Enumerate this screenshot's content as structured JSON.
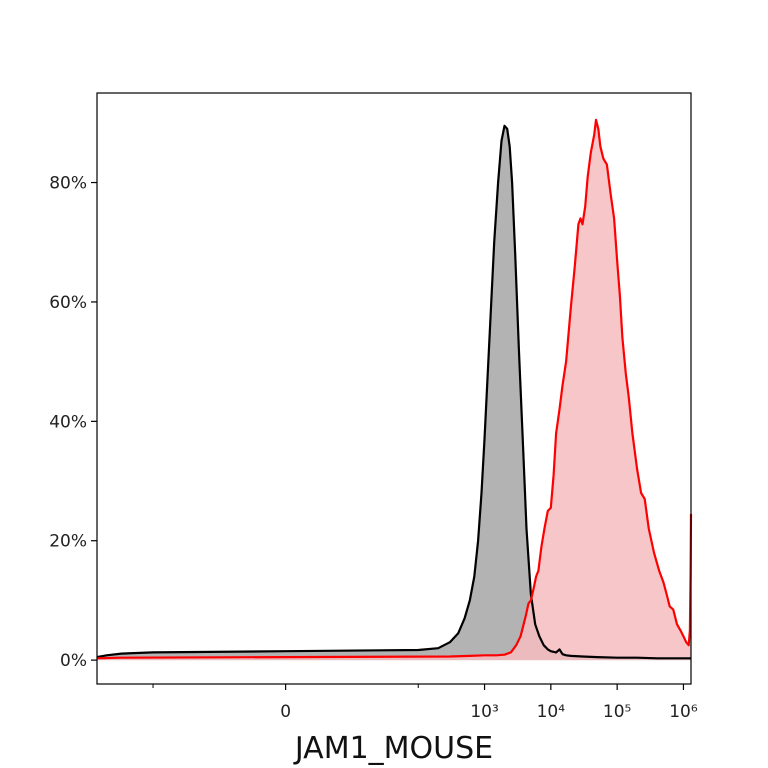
{
  "chart_data": {
    "type": "area",
    "title": "",
    "xlabel": "JAM1_MOUSE",
    "ylabel": "",
    "x_scale": "biexponential",
    "xlim": [
      -700,
      1300000
    ],
    "ylim": [
      -0.04,
      0.95
    ],
    "grid": false,
    "legend": "none",
    "x_ticks": [
      {
        "value": 0,
        "label": "0"
      },
      {
        "value": 1000,
        "label": "10³"
      },
      {
        "value": 10000,
        "label": "10⁴"
      },
      {
        "value": 100000,
        "label": "10⁵"
      },
      {
        "value": 1000000,
        "label": "10⁶"
      }
    ],
    "x_minor_ticks": [
      -100,
      100
    ],
    "y_ticks": [
      {
        "value": 0,
        "label": "0%"
      },
      {
        "value": 0.2,
        "label": "20%"
      },
      {
        "value": 0.4,
        "label": "40%"
      },
      {
        "value": 0.6,
        "label": "60%"
      },
      {
        "value": 0.8,
        "label": "80%"
      }
    ],
    "series": [
      {
        "line_color": "#000000",
        "fill_color": "#b3b3b3",
        "points": [
          [
            -700,
            0.005
          ],
          [
            -500,
            0.008
          ],
          [
            -300,
            0.011
          ],
          [
            -100,
            0.013
          ],
          [
            0,
            0.015
          ],
          [
            100,
            0.017
          ],
          [
            200,
            0.02
          ],
          [
            300,
            0.03
          ],
          [
            400,
            0.045
          ],
          [
            500,
            0.07
          ],
          [
            600,
            0.1
          ],
          [
            700,
            0.14
          ],
          [
            800,
            0.2
          ],
          [
            900,
            0.28
          ],
          [
            1000,
            0.37
          ],
          [
            1200,
            0.55
          ],
          [
            1400,
            0.7
          ],
          [
            1600,
            0.8
          ],
          [
            1800,
            0.87
          ],
          [
            2000,
            0.895
          ],
          [
            2200,
            0.89
          ],
          [
            2400,
            0.86
          ],
          [
            2600,
            0.8
          ],
          [
            2900,
            0.68
          ],
          [
            3300,
            0.52
          ],
          [
            3800,
            0.36
          ],
          [
            4300,
            0.22
          ],
          [
            5000,
            0.11
          ],
          [
            5800,
            0.06
          ],
          [
            6700,
            0.04
          ],
          [
            7800,
            0.025
          ],
          [
            9000,
            0.018
          ],
          [
            10000,
            0.015
          ],
          [
            12000,
            0.013
          ],
          [
            13500,
            0.018
          ],
          [
            15000,
            0.01
          ],
          [
            17000,
            0.008
          ],
          [
            20000,
            0.007
          ],
          [
            30000,
            0.006
          ],
          [
            50000,
            0.005
          ],
          [
            100000,
            0.004
          ],
          [
            200000,
            0.004
          ],
          [
            400000,
            0.003
          ],
          [
            700000,
            0.003
          ],
          [
            1000000,
            0.003
          ],
          [
            1300000,
            0.003
          ]
        ]
      },
      {
        "line_color": "#ff0000",
        "fill_color": "#f5bcbf",
        "points": [
          [
            -700,
            0.003
          ],
          [
            -300,
            0.004
          ],
          [
            0,
            0.005
          ],
          [
            300,
            0.006
          ],
          [
            600,
            0.007
          ],
          [
            1000,
            0.008
          ],
          [
            1500,
            0.008
          ],
          [
            2000,
            0.009
          ],
          [
            2500,
            0.013
          ],
          [
            3000,
            0.025
          ],
          [
            3500,
            0.04
          ],
          [
            4200,
            0.075
          ],
          [
            4600,
            0.095
          ],
          [
            5000,
            0.1
          ],
          [
            5500,
            0.12
          ],
          [
            6000,
            0.14
          ],
          [
            6500,
            0.15
          ],
          [
            7200,
            0.19
          ],
          [
            8000,
            0.22
          ],
          [
            9000,
            0.25
          ],
          [
            10000,
            0.255
          ],
          [
            11000,
            0.31
          ],
          [
            12000,
            0.38
          ],
          [
            13500,
            0.42
          ],
          [
            15000,
            0.46
          ],
          [
            17000,
            0.5
          ],
          [
            20000,
            0.59
          ],
          [
            23000,
            0.66
          ],
          [
            26000,
            0.73
          ],
          [
            28000,
            0.74
          ],
          [
            30000,
            0.73
          ],
          [
            33000,
            0.76
          ],
          [
            36000,
            0.81
          ],
          [
            40000,
            0.85
          ],
          [
            45000,
            0.88
          ],
          [
            48000,
            0.905
          ],
          [
            52000,
            0.89
          ],
          [
            56000,
            0.86
          ],
          [
            62000,
            0.84
          ],
          [
            70000,
            0.83
          ],
          [
            80000,
            0.78
          ],
          [
            90000,
            0.74
          ],
          [
            100000,
            0.67
          ],
          [
            110000,
            0.61
          ],
          [
            120000,
            0.54
          ],
          [
            135000,
            0.48
          ],
          [
            150000,
            0.44
          ],
          [
            170000,
            0.38
          ],
          [
            200000,
            0.32
          ],
          [
            230000,
            0.28
          ],
          [
            260000,
            0.27
          ],
          [
            300000,
            0.22
          ],
          [
            360000,
            0.18
          ],
          [
            430000,
            0.15
          ],
          [
            500000,
            0.13
          ],
          [
            560000,
            0.11
          ],
          [
            620000,
            0.09
          ],
          [
            700000,
            0.085
          ],
          [
            800000,
            0.06
          ],
          [
            900000,
            0.05
          ],
          [
            1000000,
            0.04
          ],
          [
            1100000,
            0.03
          ],
          [
            1200000,
            0.025
          ],
          [
            1250000,
            0.05
          ],
          [
            1280000,
            0.15
          ],
          [
            1300000,
            0.245
          ]
        ]
      }
    ]
  }
}
